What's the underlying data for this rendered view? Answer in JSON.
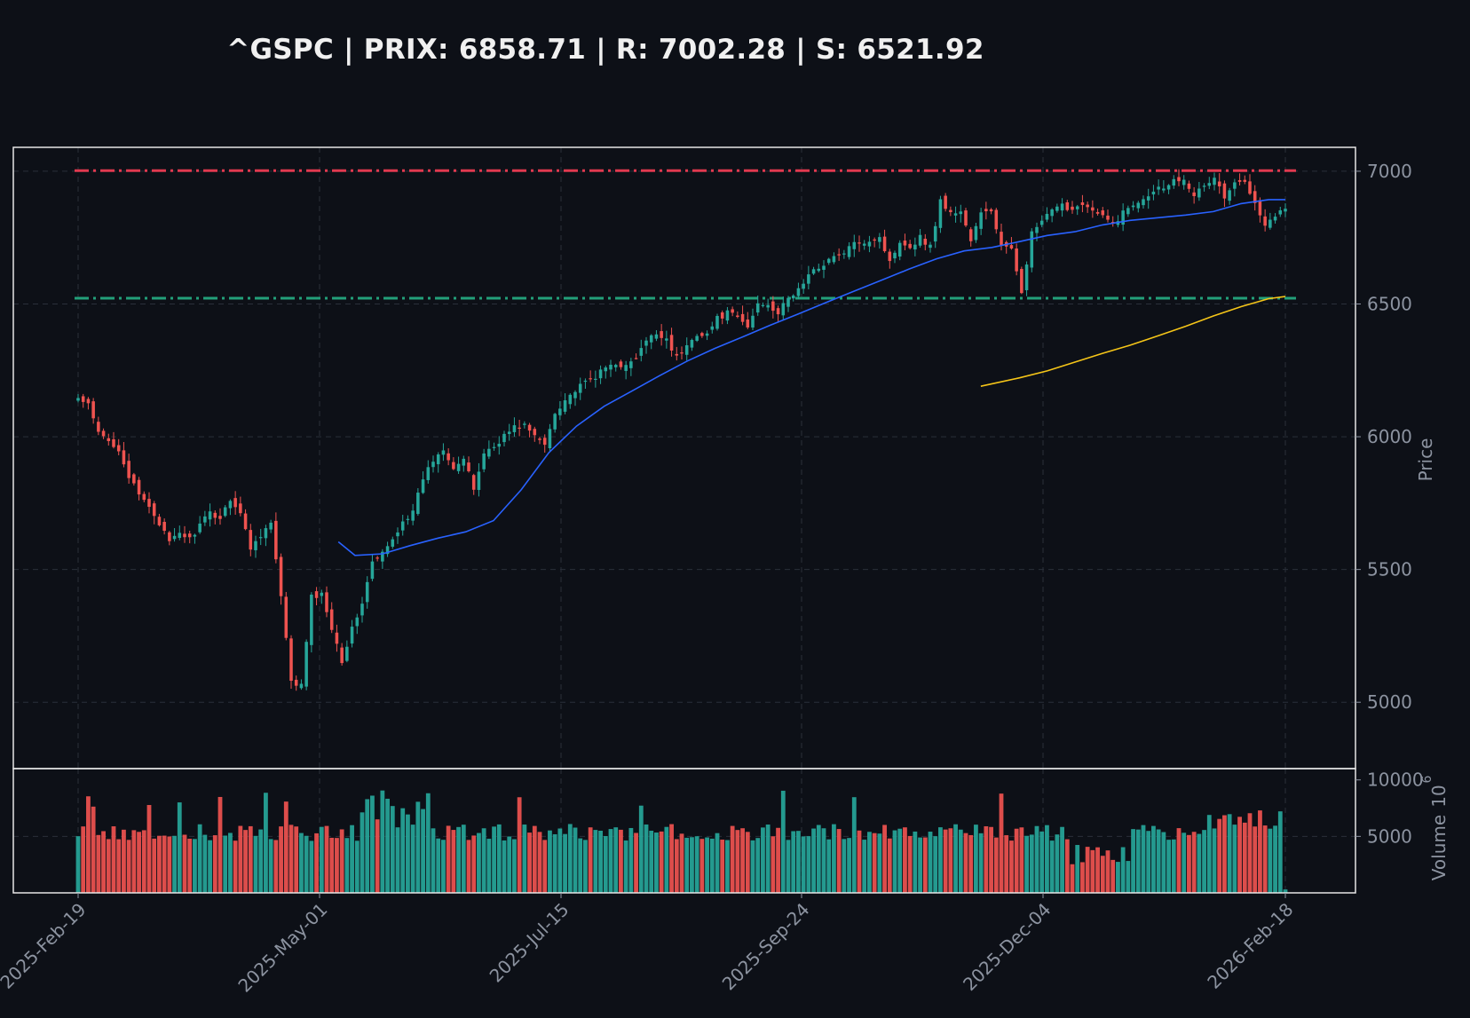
{
  "title": "^GSPC | PRIX: 6858.71 | R: 7002.28 | S: 6521.92",
  "colors": {
    "background": "#0d1017",
    "up": "#26a69a",
    "down": "#ef5350",
    "resistance": "#e0394f",
    "support": "#22a07a",
    "sma50": "#2962ff",
    "sma200": "#f5c518",
    "frame": "#e6e6e6",
    "grid": "#2a2f3a",
    "tick": "#8c93a0"
  },
  "chart_data": {
    "type": "candlestick",
    "ticker": "^GSPC",
    "price": 6858.71,
    "resistance": 7002.28,
    "support": 6521.92,
    "ylabel": "Price",
    "ylim": [
      4750,
      7090
    ],
    "yticks": [
      5000,
      5500,
      6000,
      6500,
      7000
    ],
    "x_start_date": "2025-02-19",
    "x_end_date": "2026-02-18",
    "xticks": [
      "2025-Feb-19",
      "2025-May-01",
      "2025-Jul-15",
      "2025-Sep-24",
      "2025-Dec-04",
      "2026-Feb-18"
    ],
    "grid": true,
    "volume_panel": {
      "ylabel": "Volume",
      "exponent_label": "10",
      "exponent_power": "6",
      "ylim": [
        0,
        11000
      ],
      "yticks": [
        5000,
        10000
      ]
    },
    "close_anchors": [
      6144,
      6117,
      6013,
      5983,
      5955,
      5849,
      5778,
      5739,
      5675,
      5599,
      5639,
      5614,
      5667,
      5712,
      5694,
      5768,
      5712,
      5580,
      5633,
      5675,
      5395,
      5074,
      5062,
      5396,
      5405,
      5283,
      5158,
      5275,
      5375,
      5525,
      5560,
      5611,
      5686,
      5713,
      5845,
      5912,
      5958,
      5886,
      5916,
      5802,
      5940,
      5963,
      6005,
      6036,
      6045,
      6000,
      5970,
      6092,
      6141,
      6173,
      6204,
      6227,
      6259,
      6279,
      6263,
      6297,
      6359,
      6389,
      6371,
      6297,
      6340,
      6389,
      6388,
      6445,
      6466,
      6449,
      6411,
      6502,
      6502,
      6465,
      6520,
      6555,
      6607,
      6638,
      6669,
      6680,
      6712,
      6735,
      6740,
      6753,
      6656,
      6740,
      6714,
      6753,
      6715,
      6890,
      6840,
      6851,
      6738,
      6840,
      6851,
      6720,
      6700,
      6551,
      6765,
      6812,
      6849,
      6870,
      6857,
      6883,
      6848,
      6827,
      6800,
      6845,
      6875,
      6902,
      6930,
      6944,
      6966,
      6975,
      6914,
      6940,
      6978,
      6900,
      6951,
      6962,
      6890,
      6798,
      6836,
      6858.71
    ],
    "sma50": [
      {
        "i": 47,
        "v": 5604
      },
      {
        "i": 50,
        "v": 5553
      },
      {
        "i": 55,
        "v": 5559
      },
      {
        "i": 60,
        "v": 5590
      },
      {
        "i": 65,
        "v": 5618
      },
      {
        "i": 70,
        "v": 5642
      },
      {
        "i": 75,
        "v": 5684
      },
      {
        "i": 80,
        "v": 5800
      },
      {
        "i": 85,
        "v": 5940
      },
      {
        "i": 90,
        "v": 6040
      },
      {
        "i": 95,
        "v": 6115
      },
      {
        "i": 100,
        "v": 6172
      },
      {
        "i": 105,
        "v": 6230
      },
      {
        "i": 110,
        "v": 6285
      },
      {
        "i": 115,
        "v": 6333
      },
      {
        "i": 120,
        "v": 6376
      },
      {
        "i": 125,
        "v": 6420
      },
      {
        "i": 130,
        "v": 6462
      },
      {
        "i": 135,
        "v": 6505
      },
      {
        "i": 140,
        "v": 6547
      },
      {
        "i": 145,
        "v": 6589
      },
      {
        "i": 150,
        "v": 6631
      },
      {
        "i": 155,
        "v": 6670
      },
      {
        "i": 160,
        "v": 6700
      },
      {
        "i": 165,
        "v": 6713
      },
      {
        "i": 170,
        "v": 6735
      },
      {
        "i": 175,
        "v": 6758
      },
      {
        "i": 180,
        "v": 6772
      },
      {
        "i": 185,
        "v": 6798
      },
      {
        "i": 190,
        "v": 6815
      },
      {
        "i": 195,
        "v": 6825
      },
      {
        "i": 200,
        "v": 6835
      },
      {
        "i": 205,
        "v": 6848
      },
      {
        "i": 210,
        "v": 6878
      },
      {
        "i": 215,
        "v": 6893
      },
      {
        "i": 218,
        "v": 6893
      }
    ],
    "sma200": [
      {
        "i": 163,
        "v": 6190
      },
      {
        "i": 170,
        "v": 6222
      },
      {
        "i": 175,
        "v": 6248
      },
      {
        "i": 180,
        "v": 6281
      },
      {
        "i": 185,
        "v": 6314
      },
      {
        "i": 190,
        "v": 6345
      },
      {
        "i": 195,
        "v": 6380
      },
      {
        "i": 200,
        "v": 6416
      },
      {
        "i": 205,
        "v": 6455
      },
      {
        "i": 210,
        "v": 6490
      },
      {
        "i": 215,
        "v": 6520
      },
      {
        "i": 218,
        "v": 6528
      }
    ],
    "n_candles": 239
  }
}
